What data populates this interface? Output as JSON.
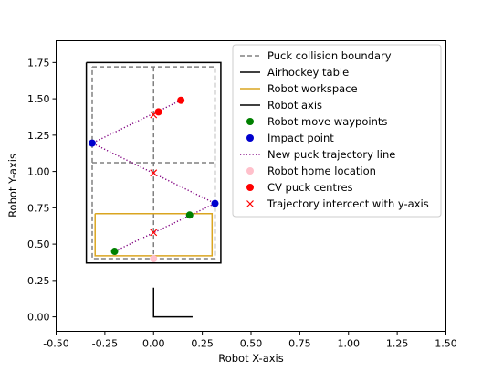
{
  "chart_data": {
    "type": "scatter",
    "xlabel": "Robot X-axis",
    "ylabel": "Robot Y-axis",
    "xlim": [
      -0.5,
      1.5
    ],
    "ylim": [
      -0.1,
      1.9
    ],
    "xticks": [
      "-0.50",
      "-0.25",
      "0.00",
      "0.25",
      "0.50",
      "0.75",
      "1.00",
      "1.25",
      "1.50"
    ],
    "xtick_values": [
      -0.5,
      -0.25,
      0.0,
      0.25,
      0.5,
      0.75,
      1.0,
      1.25,
      1.5
    ],
    "yticks": [
      "0.00",
      "0.25",
      "0.50",
      "0.75",
      "1.00",
      "1.25",
      "1.50",
      "1.75"
    ],
    "ytick_values": [
      0.0,
      0.25,
      0.5,
      0.75,
      1.0,
      1.25,
      1.5,
      1.75
    ],
    "grid": false,
    "legend_position": "top-right",
    "series": [
      {
        "name": "Puck collision boundary",
        "kind": "line",
        "color": "#808080",
        "style": "dashed",
        "segments": [
          [
            [
              -0.315,
              1.72
            ],
            [
              0.315,
              1.72
            ],
            [
              0.315,
              0.4
            ],
            [
              -0.315,
              0.4
            ],
            [
              -0.315,
              1.72
            ]
          ],
          [
            [
              -0.315,
              1.06
            ],
            [
              0.315,
              1.06
            ]
          ],
          [
            [
              0.0,
              1.72
            ],
            [
              0.0,
              0.4
            ]
          ]
        ]
      },
      {
        "name": "Airhockey table",
        "kind": "line",
        "color": "#000000",
        "style": "solid",
        "segments": [
          [
            [
              -0.345,
              1.75
            ],
            [
              0.345,
              1.75
            ],
            [
              0.345,
              0.37
            ],
            [
              -0.345,
              0.37
            ],
            [
              -0.345,
              1.75
            ]
          ]
        ]
      },
      {
        "name": "Robot workspace",
        "kind": "line",
        "color": "#DAA520",
        "style": "solid",
        "segments": [
          [
            [
              -0.3,
              0.71
            ],
            [
              0.3,
              0.71
            ],
            [
              0.3,
              0.42
            ],
            [
              -0.3,
              0.42
            ],
            [
              -0.3,
              0.71
            ]
          ]
        ]
      },
      {
        "name": "Robot axis",
        "kind": "line",
        "color": "#000000",
        "style": "solid",
        "segments": [
          [
            [
              0.0,
              0.2
            ],
            [
              0.0,
              0.0
            ],
            [
              0.2,
              0.0
            ]
          ]
        ]
      },
      {
        "name": "Robot move waypoints",
        "kind": "point",
        "color": "#008000",
        "marker": "o",
        "points": [
          [
            -0.2,
            0.45
          ],
          [
            0.185,
            0.7
          ]
        ]
      },
      {
        "name": "Impact point",
        "kind": "point",
        "color": "#0000CD",
        "marker": "o",
        "points": [
          [
            -0.315,
            1.195
          ],
          [
            0.315,
            0.78
          ]
        ]
      },
      {
        "name": "New puck trajectory line",
        "kind": "line",
        "color": "#800080",
        "style": "dotted",
        "segments": [
          [
            [
              0.14,
              1.49
            ],
            [
              -0.315,
              1.195
            ],
            [
              0.315,
              0.78
            ],
            [
              -0.2,
              0.45
            ]
          ]
        ]
      },
      {
        "name": "Robot home location",
        "kind": "point",
        "color": "#FFC0CB",
        "marker": "o",
        "points": [
          [
            0.0,
            0.4
          ]
        ]
      },
      {
        "name": "CV puck centres",
        "kind": "point",
        "color": "#FF0000",
        "marker": "o",
        "points": [
          [
            0.14,
            1.49
          ],
          [
            0.025,
            1.41
          ]
        ]
      },
      {
        "name": "Trajectory intercect with y-axis",
        "kind": "point",
        "color": "#FF0000",
        "marker": "x",
        "points": [
          [
            0.0,
            1.39
          ],
          [
            0.0,
            0.99
          ],
          [
            0.0,
            0.58
          ]
        ]
      }
    ]
  }
}
